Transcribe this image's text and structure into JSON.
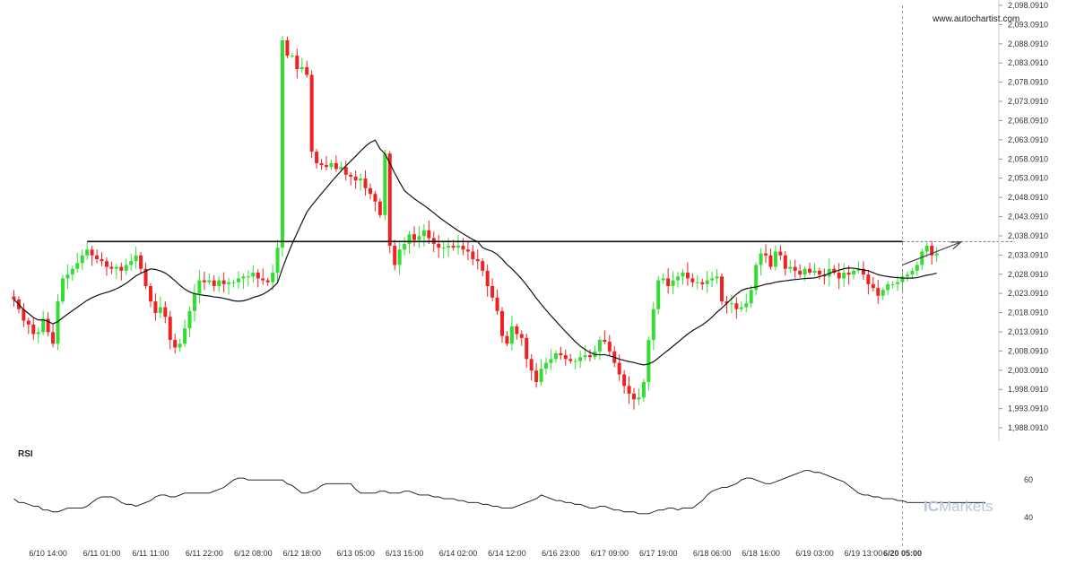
{
  "chart_data": [
    {
      "type": "candlestick",
      "source_label": "www.autochartist.com",
      "ylim": [
        1986.0,
        2098.0911
      ],
      "y_ticks": [
        "2,098.0910",
        "2,093.0910",
        "2,088.0910",
        "2,083.0910",
        "2,078.0910",
        "2,073.0910",
        "2,068.0910",
        "2,063.0910",
        "2,058.0910",
        "2,053.0910",
        "2,048.0910",
        "2,043.0910",
        "2,038.0910",
        "2,033.0910",
        "2,028.0910",
        "2,023.0910",
        "2,018.0910",
        "2,013.0910",
        "2,008.0910",
        "2,003.0910",
        "1,998.0910",
        "1,993.0910",
        "1,988.0910"
      ],
      "y_tick_values": [
        2098.091,
        2093.091,
        2088.091,
        2083.091,
        2078.091,
        2073.091,
        2068.091,
        2063.091,
        2058.091,
        2053.091,
        2048.091,
        2043.091,
        2038.091,
        2033.091,
        2028.091,
        2023.091,
        2018.091,
        2013.091,
        2008.091,
        2003.091,
        1998.091,
        1993.091,
        1988.091
      ],
      "x_ticks": [
        {
          "index": 7,
          "label": "6/10 14:00"
        },
        {
          "index": 18,
          "label": "6/11 01:00"
        },
        {
          "index": 28,
          "label": "6/11 11:00"
        },
        {
          "index": 39,
          "label": "6/11 22:00"
        },
        {
          "index": 49,
          "label": "6/12 08:00"
        },
        {
          "index": 59,
          "label": "6/12 18:00"
        },
        {
          "index": 70,
          "label": "6/13 05:00"
        },
        {
          "index": 80,
          "label": "6/13 15:00"
        },
        {
          "index": 91,
          "label": "6/14 02:00"
        },
        {
          "index": 101,
          "label": "6/14 12:00"
        },
        {
          "index": 112,
          "label": "6/16 23:00"
        },
        {
          "index": 122,
          "label": "6/17 09:00"
        },
        {
          "index": 132,
          "label": "6/17 19:00"
        },
        {
          "index": 143,
          "label": "6/18 06:00"
        },
        {
          "index": 153,
          "label": "6/18 16:00"
        },
        {
          "index": 164,
          "label": "6/19 03:00"
        },
        {
          "index": 174,
          "label": "6/19 13:00"
        },
        {
          "index": 182,
          "label": "6/20 05:00",
          "highlight": true
        }
      ],
      "close": [
        2021.5,
        2019.0,
        2016.0,
        2015.0,
        2012.5,
        2013.0,
        2016.5,
        2013.0,
        2010.0,
        2021.0,
        2027.0,
        2028.0,
        2029.5,
        2031.0,
        2033.0,
        2034.5,
        2033.0,
        2032.0,
        2031.5,
        2030.0,
        2029.5,
        2030.0,
        2029.0,
        2030.5,
        2031.5,
        2033.0,
        2029.5,
        2025.0,
        2021.0,
        2018.0,
        2019.5,
        2017.0,
        2011.0,
        2009.0,
        2010.0,
        2014.0,
        2018.5,
        2023.0,
        2026.5,
        2026.0,
        2026.5,
        2025.0,
        2026.5,
        2025.5,
        2026.0,
        2026.0,
        2027.0,
        2027.5,
        2027.5,
        2028.5,
        2027.0,
        2026.5,
        2026.0,
        2028.5,
        2035.0,
        2089.0,
        2085.0,
        2085.0,
        2081.5,
        2082.0,
        2080.0,
        2060.0,
        2057.0,
        2056.5,
        2056.0,
        2057.0,
        2055.5,
        2056.0,
        2054.0,
        2053.5,
        2052.5,
        2053.0,
        2050.5,
        2049.0,
        2047.0,
        2043.5,
        2059.5,
        2035.5,
        2030.5,
        2034.5,
        2036.0,
        2038.5,
        2037.0,
        2038.0,
        2039.5,
        2037.5,
        2036.0,
        2035.0,
        2035.0,
        2035.5,
        2035.0,
        2035.5,
        2034.5,
        2034.0,
        2032.0,
        2031.5,
        2029.0,
        2025.0,
        2022.0,
        2018.5,
        2012.0,
        2010.0,
        2014.5,
        2012.5,
        2011.5,
        2006.0,
        2003.0,
        2000.0,
        2003.5,
        2005.0,
        2006.0,
        2007.5,
        2007.0,
        2006.0,
        2005.5,
        2005.5,
        2006.5,
        2007.0,
        2006.5,
        2008.0,
        2011.0,
        2010.5,
        2008.0,
        2005.0,
        2002.0,
        1999.0,
        1997.0,
        1995.5,
        1996.0,
        2000.0,
        2011.0,
        2019.0,
        2026.5,
        2027.0,
        2025.0,
        2026.5,
        2027.5,
        2028.5,
        2027.0,
        2026.0,
        2026.0,
        2025.5,
        2026.5,
        2027.0,
        2027.5,
        2021.0,
        2020.5,
        2020.5,
        2019.0,
        2019.5,
        2020.5,
        2024.0,
        2030.5,
        2033.5,
        2033.0,
        2030.0,
        2034.0,
        2033.0,
        2029.5,
        2030.0,
        2029.0,
        2028.0,
        2029.5,
        2028.5,
        2029.0,
        2028.0,
        2027.5,
        2029.5,
        2028.5,
        2027.0,
        2028.5,
        2028.0,
        2029.0,
        2029.5,
        2028.0,
        2025.5,
        2024.5,
        2022.5,
        2024.0,
        2025.5,
        2025.5,
        2026.0,
        2027.5,
        2028.0,
        2029.0,
        2030.5,
        2034.0,
        2035.5,
        2033.0,
        2033.5
      ],
      "ma_type": "moving-average",
      "horizontal_level": 2036.591,
      "projection_arrow": {
        "from": [
          182,
          2030.5
        ],
        "to": [
          194,
          2036.5
        ]
      },
      "colors": {
        "up": "#33dd33",
        "down": "#ee2222",
        "wick": "#999999",
        "line": "#111111",
        "level_dash": "#777777",
        "highlight_tick": "#111111"
      }
    },
    {
      "type": "line",
      "title": "RSI",
      "y_ticks": [
        "60",
        "40"
      ],
      "y_tick_values": [
        60,
        40
      ],
      "ylim": [
        30,
        72
      ],
      "values": [
        50,
        48,
        48,
        47,
        46,
        46,
        44,
        44,
        43,
        43,
        44,
        45,
        45,
        45,
        45,
        46,
        48,
        50,
        51,
        51,
        51,
        50,
        48,
        47,
        47,
        46,
        47,
        48,
        49,
        51,
        52,
        52,
        51,
        51,
        52,
        53,
        53,
        53,
        53,
        53,
        53,
        54,
        55,
        56,
        58,
        60,
        61,
        61,
        60,
        60,
        60,
        60,
        60,
        60,
        60,
        60,
        58,
        57,
        55,
        53,
        53,
        54,
        55,
        57,
        58,
        58,
        58,
        58,
        58,
        58,
        55,
        53,
        53,
        53,
        53,
        54,
        54,
        53,
        53,
        53,
        54,
        54,
        53,
        52,
        52,
        52,
        51,
        51,
        50,
        50,
        50,
        49,
        49,
        48,
        48,
        48,
        47,
        47,
        46,
        46,
        45,
        45,
        45,
        46,
        47,
        48,
        49,
        50,
        52,
        51,
        50,
        49,
        49,
        48,
        48,
        47,
        47,
        46,
        45,
        45,
        46,
        46,
        45,
        44,
        44,
        43,
        43,
        43,
        42,
        42,
        42,
        43,
        44,
        44,
        45,
        45,
        44,
        45,
        45,
        45,
        47,
        49,
        52,
        54,
        55,
        56,
        56,
        57,
        58,
        60,
        61,
        61,
        60,
        59,
        58,
        58,
        59,
        60,
        61,
        62,
        63,
        64,
        65,
        65,
        64,
        64,
        63,
        62,
        61,
        60,
        59,
        57,
        55,
        53,
        52,
        52,
        51,
        51,
        50,
        50,
        50,
        49,
        49,
        48,
        48,
        48,
        48,
        48,
        48,
        48,
        48,
        48,
        48,
        48,
        48,
        48,
        48,
        48,
        48,
        48
      ]
    }
  ],
  "watermark": {
    "prefix": "IC",
    "text": "Markets",
    "color": "#b9c7d6"
  }
}
